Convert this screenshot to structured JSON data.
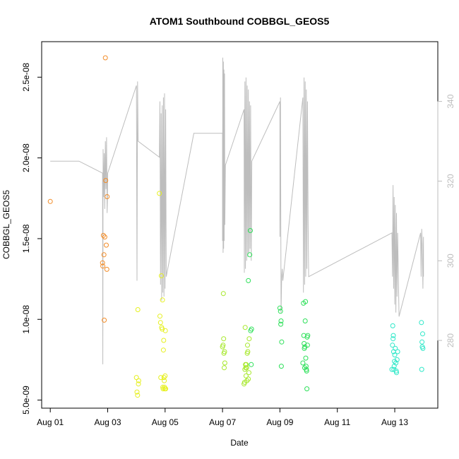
{
  "chart_data": {
    "type": "scatter",
    "title": "ATOM1 Southbound COBBGL_GEOS5",
    "xlabel": "Date",
    "ylabel": "COBBGL_GEOS5",
    "x_ticks": [
      "Aug 01",
      "Aug 03",
      "Aug 05",
      "Aug 07",
      "Aug 09",
      "Aug 11",
      "Aug 13"
    ],
    "y_ticks": [
      "5.0e-09",
      "1.0e-08",
      "1.5e-08",
      "2.0e-08",
      "2.5e-08"
    ],
    "y_tick_values": [
      5e-09,
      1e-08,
      1.5e-08,
      2e-08,
      2.5e-08
    ],
    "right_ticks": [
      "280",
      "300",
      "320",
      "340"
    ],
    "right_tick_values": [
      280,
      300,
      320,
      340
    ],
    "xlim": [
      -0.3,
      13.5
    ],
    "ylim": [
      4.5e-09,
      2.72e-08
    ],
    "right_ylim": [
      263,
      355
    ],
    "grid": false,
    "colors": {
      "orange": "#f28c28",
      "yellow": "#e6f020",
      "yellowgreen": "#a6e82a",
      "green": "#2ee05a",
      "cyan": "#2ee8c8",
      "line": "#bdbdbd"
    },
    "series": [
      {
        "color": "orange",
        "points": [
          [
            0.0,
            1.73e-08
          ],
          [
            1.82,
            1.35e-08
          ],
          [
            1.83,
            1.33e-08
          ],
          [
            1.85,
            1.52e-08
          ],
          [
            1.87,
            1.4e-08
          ],
          [
            1.88,
            9.95e-09
          ],
          [
            1.9,
            1.51e-08
          ],
          [
            1.92,
            2.62e-08
          ],
          [
            1.93,
            1.86e-08
          ],
          [
            1.95,
            1.46e-08
          ],
          [
            1.97,
            1.31e-08
          ],
          [
            1.98,
            1.76e-08
          ]
        ]
      },
      {
        "color": "yellow",
        "points": [
          [
            3.0,
            6.4e-09
          ],
          [
            3.02,
            5.5e-09
          ],
          [
            3.04,
            5.3e-09
          ],
          [
            3.05,
            1.06e-08
          ],
          [
            3.07,
            6e-09
          ],
          [
            3.08,
            6.2e-09
          ],
          [
            3.8,
            1.78e-08
          ],
          [
            3.82,
            1.02e-08
          ],
          [
            3.84,
            9.8e-09
          ],
          [
            3.85,
            6.4e-09
          ],
          [
            3.87,
            1.27e-08
          ],
          [
            3.88,
            9.5e-09
          ],
          [
            3.9,
            9.4e-09
          ],
          [
            3.91,
            1.12e-08
          ],
          [
            3.92,
            5.8e-09
          ],
          [
            3.93,
            5.7e-09
          ],
          [
            3.94,
            8.1e-09
          ],
          [
            3.95,
            8.7e-09
          ],
          [
            3.96,
            6.4e-09
          ],
          [
            3.97,
            6.2e-09
          ],
          [
            3.98,
            5.8e-09
          ],
          [
            3.99,
            5.7e-09
          ],
          [
            4.0,
            6.5e-09
          ],
          [
            4.01,
            9.3e-09
          ],
          [
            4.02,
            5.7e-09
          ]
        ]
      },
      {
        "color": "yellowgreen",
        "points": [
          [
            6.0,
            8.3e-09
          ],
          [
            6.02,
            8.4e-09
          ],
          [
            6.03,
            1.16e-08
          ],
          [
            6.04,
            8.8e-09
          ],
          [
            6.05,
            7.9e-09
          ],
          [
            6.06,
            7e-09
          ],
          [
            6.07,
            8e-09
          ],
          [
            6.08,
            7.3e-09
          ],
          [
            6.75,
            6e-09
          ],
          [
            6.77,
            6.1e-09
          ],
          [
            6.78,
            6.9e-09
          ],
          [
            6.79,
            9.5e-09
          ],
          [
            6.8,
            7.2e-09
          ],
          [
            6.81,
            7e-09
          ],
          [
            6.82,
            6.5e-09
          ],
          [
            6.83,
            7.2e-09
          ],
          [
            6.84,
            7e-09
          ],
          [
            6.85,
            6.2e-09
          ],
          [
            6.86,
            7.9e-09
          ],
          [
            6.87,
            8.4e-09
          ],
          [
            6.88,
            8e-09
          ],
          [
            6.9,
            6.3e-09
          ],
          [
            6.92,
            6.7e-09
          ],
          [
            6.93,
            8.8e-09
          ]
        ]
      },
      {
        "color": "green",
        "points": [
          [
            6.9,
            1.24e-08
          ],
          [
            6.95,
            1.4e-08
          ],
          [
            6.97,
            1.55e-08
          ],
          [
            6.98,
            9.3e-09
          ],
          [
            7.0,
            7.2e-09
          ],
          [
            7.01,
            9.4e-09
          ],
          [
            8.0,
            1.07e-08
          ],
          [
            8.02,
            1.05e-08
          ],
          [
            8.03,
            9.7e-09
          ],
          [
            8.04,
            9.9e-09
          ],
          [
            8.05,
            7.1e-09
          ],
          [
            8.06,
            8.6e-09
          ],
          [
            8.8,
            7.3e-09
          ],
          [
            8.82,
            1.1e-08
          ],
          [
            8.83,
            9e-09
          ],
          [
            8.84,
            8.5e-09
          ],
          [
            8.85,
            8.2e-09
          ],
          [
            8.86,
            7e-09
          ],
          [
            8.87,
            8.3e-09
          ],
          [
            8.88,
            9.9e-09
          ],
          [
            8.89,
            1.11e-08
          ],
          [
            8.9,
            7.6e-09
          ],
          [
            8.91,
            7.1e-09
          ],
          [
            8.92,
            6.9e-09
          ],
          [
            8.93,
            6.8e-09
          ],
          [
            8.94,
            5.7e-09
          ],
          [
            8.95,
            8.9e-09
          ],
          [
            8.96,
            8.4e-09
          ],
          [
            8.97,
            9e-09
          ]
        ]
      },
      {
        "color": "cyan",
        "points": [
          [
            11.9,
            6.9e-09
          ],
          [
            11.92,
            8.4e-09
          ],
          [
            11.93,
            9.6e-09
          ],
          [
            11.94,
            8.8e-09
          ],
          [
            11.95,
            9e-09
          ],
          [
            11.96,
            8e-09
          ],
          [
            11.97,
            6.9e-09
          ],
          [
            11.98,
            7.1e-09
          ],
          [
            11.99,
            7.4e-09
          ],
          [
            12.0,
            7.8e-09
          ],
          [
            12.02,
            8.2e-09
          ],
          [
            12.04,
            7.3e-09
          ],
          [
            12.05,
            6.8e-09
          ],
          [
            12.06,
            6.7e-09
          ],
          [
            12.08,
            7.5e-09
          ],
          [
            12.1,
            8e-09
          ],
          [
            12.93,
            9.8e-09
          ],
          [
            12.94,
            6.9e-09
          ],
          [
            12.95,
            8.6e-09
          ],
          [
            12.96,
            8.3e-09
          ],
          [
            12.97,
            9.1e-09
          ],
          [
            12.98,
            8.2e-09
          ]
        ]
      }
    ],
    "altitude_line": {
      "axis": "right",
      "points": [
        [
          0.0,
          325
        ],
        [
          1.0,
          325
        ],
        [
          1.82,
          322
        ],
        [
          1.83,
          274
        ],
        [
          1.84,
          328
        ],
        [
          1.86,
          316
        ],
        [
          1.88,
          327
        ],
        [
          1.9,
          313
        ],
        [
          1.92,
          330
        ],
        [
          1.94,
          318
        ],
        [
          1.96,
          331
        ],
        [
          1.98,
          312
        ],
        [
          1.99,
          315
        ],
        [
          2.0,
          322
        ],
        [
          3.0,
          344
        ],
        [
          3.02,
          295
        ],
        [
          3.04,
          345
        ],
        [
          3.06,
          330
        ],
        [
          3.8,
          326
        ],
        [
          3.82,
          340
        ],
        [
          3.84,
          294
        ],
        [
          3.86,
          337
        ],
        [
          3.88,
          290
        ],
        [
          3.9,
          339
        ],
        [
          3.92,
          292
        ],
        [
          3.94,
          341
        ],
        [
          3.96,
          291
        ],
        [
          3.98,
          342
        ],
        [
          4.0,
          293
        ],
        [
          4.02,
          338
        ],
        [
          4.04,
          296
        ],
        [
          5.0,
          332
        ],
        [
          6.0,
          332
        ],
        [
          6.0,
          305
        ],
        [
          6.01,
          351
        ],
        [
          6.02,
          302
        ],
        [
          6.03,
          350
        ],
        [
          6.04,
          303
        ],
        [
          6.05,
          348
        ],
        [
          6.06,
          305
        ],
        [
          6.07,
          347
        ],
        [
          6.08,
          309
        ],
        [
          6.1,
          324
        ],
        [
          6.75,
          338
        ],
        [
          6.76,
          297
        ],
        [
          6.78,
          345
        ],
        [
          6.8,
          298
        ],
        [
          6.82,
          346
        ],
        [
          6.84,
          300
        ],
        [
          6.86,
          344
        ],
        [
          6.88,
          301
        ],
        [
          6.9,
          343
        ],
        [
          6.92,
          302
        ],
        [
          6.94,
          340
        ],
        [
          6.96,
          303
        ],
        [
          6.98,
          339
        ],
        [
          7.0,
          300
        ],
        [
          7.02,
          325
        ],
        [
          8.0,
          340
        ],
        [
          8.0,
          306
        ],
        [
          8.02,
          341
        ],
        [
          8.04,
          287
        ],
        [
          8.06,
          296
        ],
        [
          8.08,
          298
        ],
        [
          8.1,
          295
        ],
        [
          8.8,
          341
        ],
        [
          8.82,
          292
        ],
        [
          8.84,
          346
        ],
        [
          8.86,
          294
        ],
        [
          8.88,
          345
        ],
        [
          8.9,
          296
        ],
        [
          8.92,
          343
        ],
        [
          8.94,
          298
        ],
        [
          8.96,
          340
        ],
        [
          8.98,
          310
        ],
        [
          9.0,
          296
        ],
        [
          11.9,
          307
        ],
        [
          11.92,
          296
        ],
        [
          11.94,
          319
        ],
        [
          11.96,
          293
        ],
        [
          11.98,
          316
        ],
        [
          12.0,
          289
        ],
        [
          12.02,
          314
        ],
        [
          12.04,
          287
        ],
        [
          12.06,
          312
        ],
        [
          12.08,
          291
        ],
        [
          12.1,
          307
        ],
        [
          12.15,
          286
        ],
        [
          12.9,
          307
        ],
        [
          12.92,
          296
        ],
        [
          12.94,
          308
        ],
        [
          12.96,
          304
        ],
        [
          12.98,
          293
        ],
        [
          13.0,
          306
        ],
        [
          13.0,
          296
        ]
      ]
    }
  }
}
